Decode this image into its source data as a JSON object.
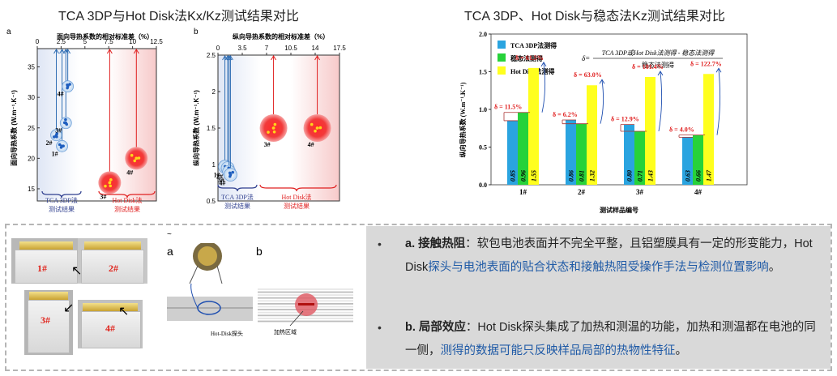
{
  "titles": {
    "left": "TCA 3DP与Hot Disk法Kx/Kz测试结果对比",
    "right": "TCA 3DP、Hot Disk与稳态法Kz测试结果对比"
  },
  "chart_data": [
    {
      "panel": "a",
      "type": "scatter",
      "top_axis_label": "面向导热系数的相对标准差（%）",
      "x_ticks": [
        0,
        2.5,
        5.0,
        7.5,
        10.0,
        12.5
      ],
      "xlim": [
        0,
        12.5
      ],
      "ylabel": "面向导热系数 (W.m⁻¹.K⁻¹)",
      "y_ticks": [
        15,
        20,
        25,
        30,
        35
      ],
      "ylim": [
        13,
        38
      ],
      "series": [
        {
          "group": "TCA 3DP法测试结果",
          "color": "#2f6db3",
          "points": [
            {
              "label": "2#",
              "x": 2.0,
              "y": 23.8
            },
            {
              "label": "1#",
              "x": 2.6,
              "y": 22.0
            },
            {
              "label": "3#",
              "x": 3.0,
              "y": 25.8
            },
            {
              "label": "4#",
              "x": 3.2,
              "y": 31.8
            }
          ]
        },
        {
          "group": "Hot Disk法测试结果",
          "color": "#e02020",
          "points": [
            {
              "label": "3#",
              "x": 7.6,
              "y": 16.0
            },
            {
              "label": "4#",
              "x": 10.4,
              "y": 20.0
            }
          ]
        }
      ],
      "group_labels": [
        "TCA 3DP法",
        "测试结果",
        "Hot Disk法",
        "测试结果"
      ]
    },
    {
      "panel": "b",
      "type": "scatter",
      "top_axis_label": "纵向导热系数的相对标准差（%）",
      "x_ticks": [
        0,
        3.5,
        7.0,
        10.5,
        14.0,
        17.5
      ],
      "xlim": [
        0,
        17.5
      ],
      "ylabel": "纵向导热系数 (W.m⁻¹.K⁻¹)",
      "y_ticks": [
        0.5,
        1.0,
        1.5,
        2.0,
        2.5
      ],
      "ylim": [
        0.5,
        2.5
      ],
      "series": [
        {
          "group": "TCA 3DP法测试结果",
          "color": "#2f6db3",
          "points": [
            {
              "label": "1#",
              "x": 1.0,
              "y": 0.97
            },
            {
              "label": "2#",
              "x": 1.4,
              "y": 0.95
            },
            {
              "label": "3#",
              "x": 1.6,
              "y": 0.9
            },
            {
              "label": "4#",
              "x": 1.8,
              "y": 0.86
            }
          ]
        },
        {
          "group": "Hot Disk法测试结果",
          "color": "#e02020",
          "points": [
            {
              "label": "3#",
              "x": 8.0,
              "y": 1.5
            },
            {
              "label": "4#",
              "x": 14.3,
              "y": 1.5
            }
          ]
        }
      ],
      "group_labels": [
        "TCA 3DP法",
        "测试结果",
        "Hot Disk法",
        "测试结果"
      ]
    },
    {
      "type": "bar",
      "xlabel": "测试样品编号",
      "ylabel": "纵向导热系数 (W.m⁻¹.K⁻¹)",
      "ylim": [
        0,
        2.0
      ],
      "y_ticks": [
        "0.0",
        "0.5",
        "1.0",
        "1.5",
        "2.0"
      ],
      "categories": [
        "1#",
        "2#",
        "3#",
        "4#"
      ],
      "series": [
        {
          "name": "TCA 3DP法测得",
          "color": "#2aa4e0",
          "values": [
            0.85,
            0.86,
            0.8,
            0.63
          ],
          "labels": [
            "0.85",
            "0.86",
            "0.80",
            "0.63"
          ]
        },
        {
          "name": "稳态法测得",
          "color": "#27d23a",
          "values": [
            0.96,
            0.81,
            0.71,
            0.66
          ],
          "labels": [
            "0.96",
            "0.81",
            "0.71",
            "0.66"
          ]
        },
        {
          "name": "Hot Disk法测得",
          "color": "#ffff1e",
          "values": [
            1.55,
            1.32,
            1.43,
            1.47
          ],
          "labels": [
            "1.55",
            "1.32",
            "1.43",
            "1.47"
          ]
        }
      ],
      "deltas_3dp": [
        "δ = 11.5%",
        "δ = 6.2%",
        "δ = 12.9%",
        "δ = 4.0%"
      ],
      "deltas_hotdisk": [
        "δ = 61.5%",
        "δ = 63.0%",
        "δ = 101.4%",
        "δ = 122.7%"
      ],
      "formula": {
        "prefix": "δ=",
        "numerator": "TCA 3DP或Hot Disk法测得  -  稳态法测得",
        "denominator": "稳态法测得"
      }
    }
  ],
  "photos": {
    "cells": [
      "1#",
      "2#",
      "3#",
      "4#"
    ],
    "panel_a": "a",
    "panel_b": "b",
    "probe_label": "Hot-Disk探头",
    "heat_label": "加热区域",
    "tilde": "~"
  },
  "notes": [
    {
      "bullet": "•",
      "term": "a. 接触热阻",
      "colon": "：",
      "plain1": "软包电池表面并不完全平整，且铝塑膜具有一定的形变能力，Hot Disk",
      "blue": "探头与电池表面的贴合状态和接触热阻受操作手法与检测位置影响",
      "end": "。"
    },
    {
      "bullet": "•",
      "term": "b. 局部效应",
      "colon": "：",
      "plain1": "Hot Disk探头集成了加热和测温的功能，加热和测温都在电池的同一侧，",
      "blue": "测得的数据可能只反映样品局部的热物性特征",
      "end": "。"
    }
  ],
  "colors": {
    "tca": "#2f6db3",
    "hotdisk": "#e02020",
    "panel_bg": "#d9d9d9"
  }
}
